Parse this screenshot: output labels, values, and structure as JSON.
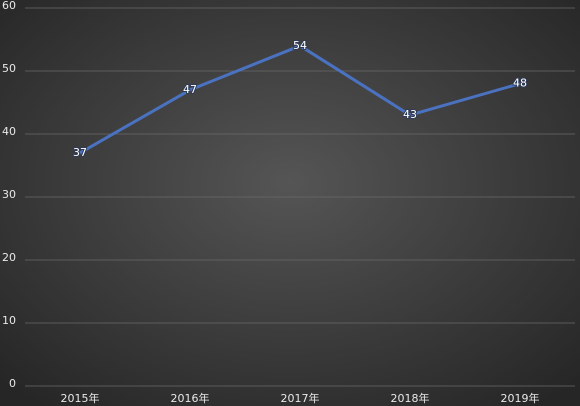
{
  "chart_data": {
    "type": "line",
    "categories": [
      "2015年",
      "2016年",
      "2017年",
      "2018年",
      "2019年"
    ],
    "values": [
      37,
      47,
      54,
      43,
      48
    ],
    "color": "#4a72c0",
    "ylim": [
      0,
      60
    ],
    "yticks": [
      0,
      10,
      20,
      30,
      40,
      50,
      60
    ],
    "grid": true
  }
}
